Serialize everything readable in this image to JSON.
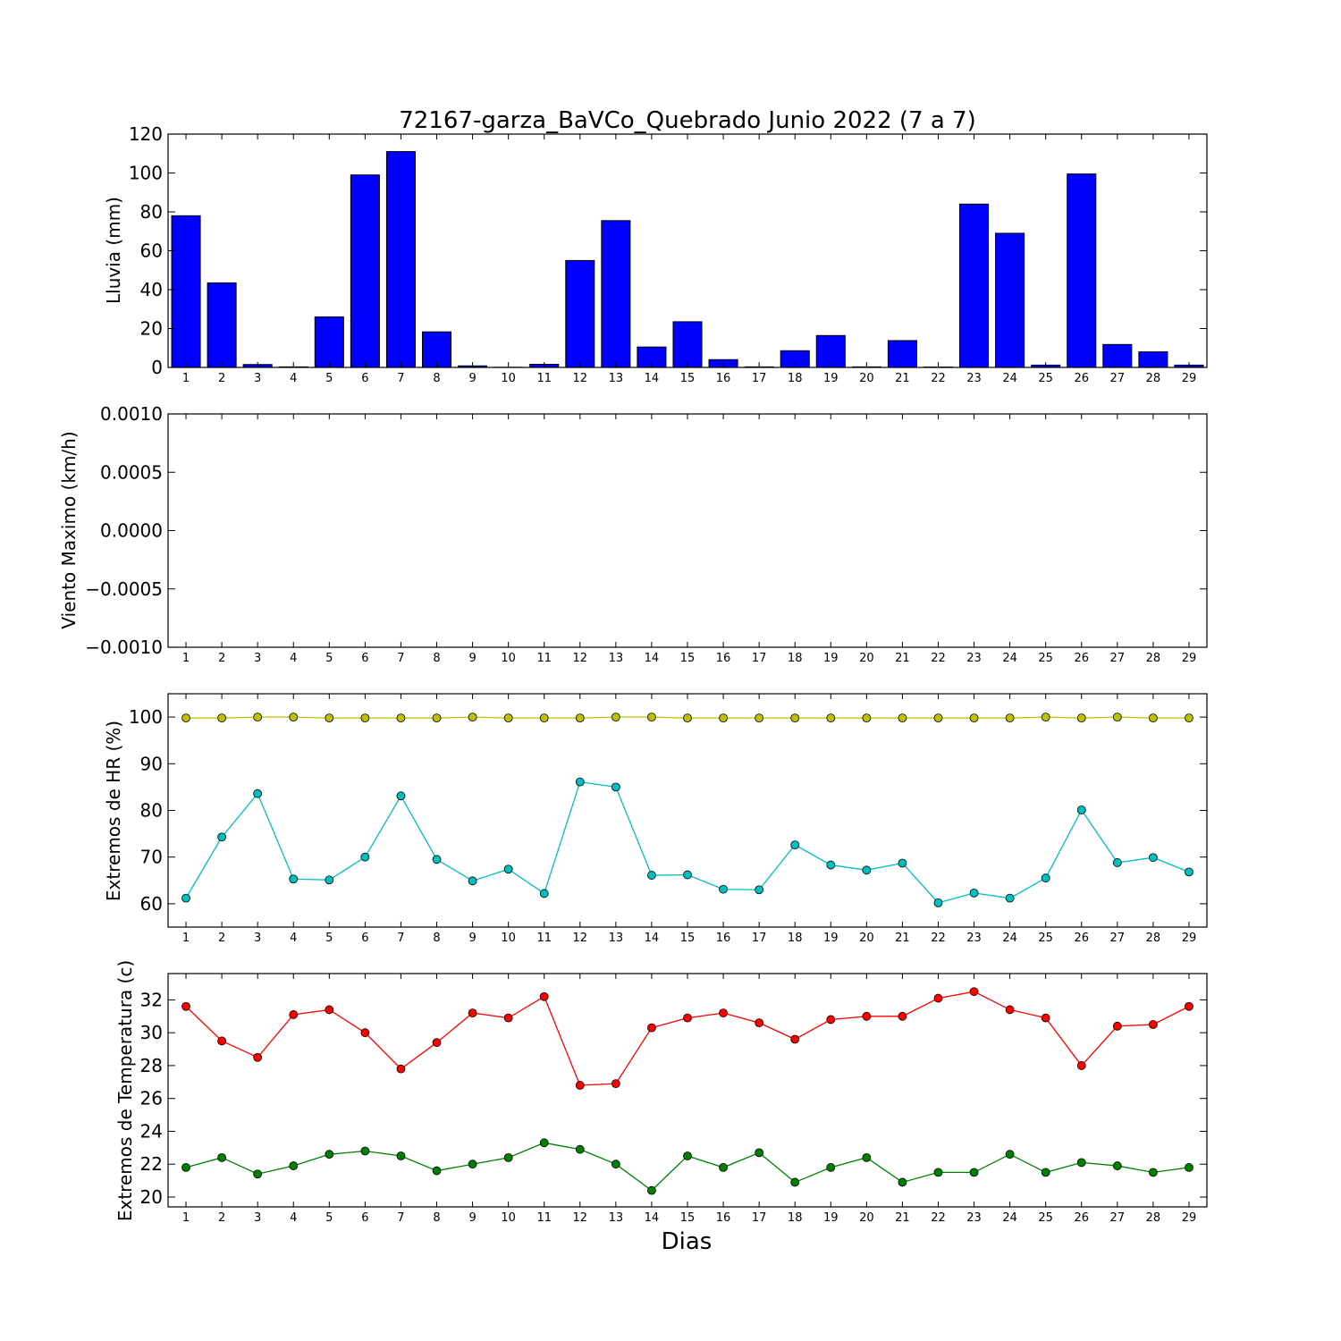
{
  "chart_data": [
    {
      "type": "bar",
      "title": "72167-garza_BaVCo_Quebrado Junio 2022  (7 a 7)",
      "ylabel": "Lluvia (mm)",
      "xlabel": "",
      "categories": [
        "1",
        "2",
        "3",
        "4",
        "5",
        "6",
        "7",
        "8",
        "9",
        "10",
        "11",
        "12",
        "13",
        "14",
        "15",
        "16",
        "17",
        "18",
        "19",
        "20",
        "21",
        "22",
        "23",
        "24",
        "25",
        "26",
        "27",
        "28",
        "29"
      ],
      "values": [
        78,
        43.5,
        1.5,
        0.3,
        26,
        99,
        111,
        18.3,
        0.8,
        0.1,
        1.6,
        55,
        75.5,
        10.5,
        23.5,
        4,
        0.3,
        8.6,
        16.4,
        0.3,
        13.8,
        0.2,
        84,
        69,
        1.2,
        99.5,
        11.8,
        8,
        1.2
      ],
      "ylim": [
        0,
        120
      ],
      "yticks": [
        0,
        20,
        40,
        60,
        80,
        100,
        120
      ],
      "ytick_labels": [
        "0",
        "20",
        "40",
        "60",
        "80",
        "100",
        "120"
      ],
      "colors": {
        "bar": "#0000ff"
      },
      "grid": false
    },
    {
      "type": "line",
      "title": "",
      "ylabel": "Viento Maximo (km/h)",
      "xlabel": "",
      "categories": [
        "1",
        "2",
        "3",
        "4",
        "5",
        "6",
        "7",
        "8",
        "9",
        "10",
        "11",
        "12",
        "13",
        "14",
        "15",
        "16",
        "17",
        "18",
        "19",
        "20",
        "21",
        "22",
        "23",
        "24",
        "25",
        "26",
        "27",
        "28",
        "29"
      ],
      "series": [],
      "ylim": [
        -0.001,
        0.001
      ],
      "yticks": [
        -0.001,
        -0.0005,
        0,
        0.0005,
        0.001
      ],
      "ytick_labels": [
        "−0.0010",
        "−0.0005",
        "0.0000",
        "0.0005",
        "0.0010"
      ],
      "grid": false
    },
    {
      "type": "line",
      "title": "",
      "ylabel": "Extremos de HR (%)",
      "xlabel": "",
      "categories": [
        "1",
        "2",
        "3",
        "4",
        "5",
        "6",
        "7",
        "8",
        "9",
        "10",
        "11",
        "12",
        "13",
        "14",
        "15",
        "16",
        "17",
        "18",
        "19",
        "20",
        "21",
        "22",
        "23",
        "24",
        "25",
        "26",
        "27",
        "28",
        "29"
      ],
      "series": [
        {
          "values": [
            99.8,
            99.8,
            100,
            100,
            99.8,
            99.8,
            99.8,
            99.8,
            100,
            99.8,
            99.8,
            99.8,
            100,
            100,
            99.8,
            99.8,
            99.8,
            99.8,
            99.8,
            99.8,
            99.8,
            99.8,
            99.8,
            99.8,
            100,
            99.8,
            100,
            99.8,
            99.8
          ],
          "color": "#bfbf00"
        },
        {
          "values": [
            61.2,
            74.3,
            83.6,
            65.3,
            65.1,
            70,
            83.1,
            69.5,
            64.9,
            67.4,
            62.2,
            86.1,
            85,
            66.1,
            66.2,
            63.1,
            63,
            72.6,
            68.3,
            67.2,
            68.7,
            60.2,
            62.3,
            61.2,
            65.5,
            80.1,
            68.8,
            69.9,
            66.8
          ],
          "color": "#00bfbf"
        }
      ],
      "ylim": [
        55,
        105
      ],
      "yticks": [
        60,
        70,
        80,
        90,
        100
      ],
      "ytick_labels": [
        "60",
        "70",
        "80",
        "90",
        "100"
      ],
      "grid": false
    },
    {
      "type": "line",
      "title": "",
      "ylabel": "Extremos de Temperatura (c)",
      "xlabel": "Dias",
      "categories": [
        "1",
        "2",
        "3",
        "4",
        "5",
        "6",
        "7",
        "8",
        "9",
        "10",
        "11",
        "12",
        "13",
        "14",
        "15",
        "16",
        "17",
        "18",
        "19",
        "20",
        "21",
        "22",
        "23",
        "24",
        "25",
        "26",
        "27",
        "28",
        "29"
      ],
      "series": [
        {
          "values": [
            31.6,
            29.5,
            28.5,
            31.1,
            31.4,
            30,
            27.8,
            29.4,
            31.2,
            30.9,
            32.2,
            26.8,
            26.9,
            30.3,
            30.9,
            31.2,
            30.6,
            29.6,
            30.8,
            31,
            31,
            32.1,
            32.5,
            31.4,
            30.9,
            28,
            30.4,
            30.5,
            31.6
          ],
          "color": "#ff0000"
        },
        {
          "values": [
            21.8,
            22.4,
            21.4,
            21.9,
            22.6,
            22.8,
            22.5,
            21.6,
            22,
            22.4,
            23.3,
            22.9,
            22,
            20.4,
            22.5,
            21.8,
            22.7,
            20.9,
            21.8,
            22.4,
            20.9,
            21.5,
            21.5,
            22.6,
            21.5,
            22.1,
            21.9,
            21.5,
            21.8
          ],
          "color": "#008000"
        }
      ],
      "ylim": [
        19.4,
        33.6
      ],
      "yticks": [
        20,
        22,
        24,
        26,
        28,
        30,
        32
      ],
      "ytick_labels": [
        "20",
        "22",
        "24",
        "26",
        "28",
        "30",
        "32"
      ],
      "grid": false
    }
  ]
}
